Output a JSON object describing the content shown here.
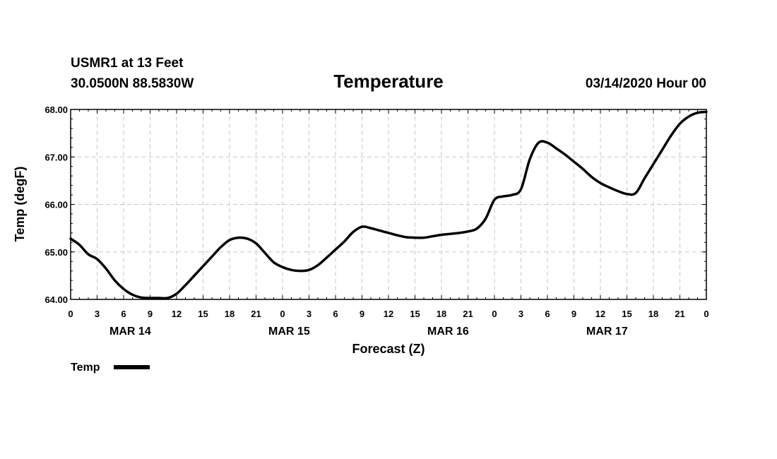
{
  "header": {
    "station": "USMR1 at 13 Feet",
    "location": "30.0500N 88.5830W",
    "datetime": "03/14/2020 Hour 00"
  },
  "legend": {
    "label": "Temp",
    "color": "#000000"
  },
  "chart_data": {
    "type": "line",
    "title": "Temperature",
    "xlabel": "Forecast (Z)",
    "ylabel": "Temp (degF)",
    "ylim": [
      64.0,
      68.0
    ],
    "xlim": [
      0,
      72
    ],
    "grid": true,
    "y_ticks": [
      "64.00",
      "65.00",
      "66.00",
      "67.00",
      "68.00"
    ],
    "x_tick_labels": [
      "0",
      "3",
      "6",
      "9",
      "12",
      "15",
      "18",
      "21",
      "0",
      "3",
      "6",
      "9",
      "12",
      "15",
      "18",
      "21",
      "0",
      "3",
      "6",
      "9",
      "12",
      "15",
      "18",
      "21",
      "0"
    ],
    "day_labels": [
      {
        "label": "MAR 14",
        "hour": 6.75
      },
      {
        "label": "MAR 15",
        "hour": 24.75
      },
      {
        "label": "MAR 16",
        "hour": 42.75
      },
      {
        "label": "MAR 17",
        "hour": 60.75
      }
    ],
    "series": [
      {
        "name": "Temp",
        "x": [
          0,
          1,
          2,
          3,
          4,
          5,
          6,
          7,
          8,
          9,
          10,
          11,
          12,
          13,
          14,
          15,
          16,
          17,
          18,
          19,
          20,
          21,
          22,
          23,
          24,
          25,
          26,
          27,
          28,
          29,
          30,
          31,
          32,
          33,
          34,
          35,
          36,
          37,
          38,
          39,
          40,
          41,
          42,
          43,
          44,
          45,
          46,
          47,
          48,
          49,
          50,
          51,
          52,
          53,
          54,
          55,
          56,
          57,
          58,
          59,
          60,
          61,
          62,
          63,
          64,
          65,
          66,
          67,
          68,
          69,
          70,
          71,
          72
        ],
        "values": [
          65.28,
          65.15,
          64.95,
          64.85,
          64.65,
          64.4,
          64.22,
          64.1,
          64.04,
          64.03,
          64.03,
          64.03,
          64.12,
          64.3,
          64.5,
          64.7,
          64.9,
          65.1,
          65.25,
          65.3,
          65.28,
          65.18,
          64.98,
          64.78,
          64.68,
          64.62,
          64.6,
          64.62,
          64.72,
          64.88,
          65.05,
          65.22,
          65.42,
          65.53,
          65.5,
          65.45,
          65.4,
          65.35,
          65.31,
          65.3,
          65.3,
          65.33,
          65.36,
          65.38,
          65.4,
          65.43,
          65.49,
          65.7,
          66.1,
          66.17,
          66.2,
          66.32,
          66.95,
          67.3,
          67.3,
          67.18,
          67.05,
          66.9,
          66.75,
          66.58,
          66.45,
          66.36,
          66.28,
          66.22,
          66.24,
          66.55,
          66.85,
          67.15,
          67.45,
          67.7,
          67.85,
          67.93,
          67.95
        ]
      }
    ]
  }
}
